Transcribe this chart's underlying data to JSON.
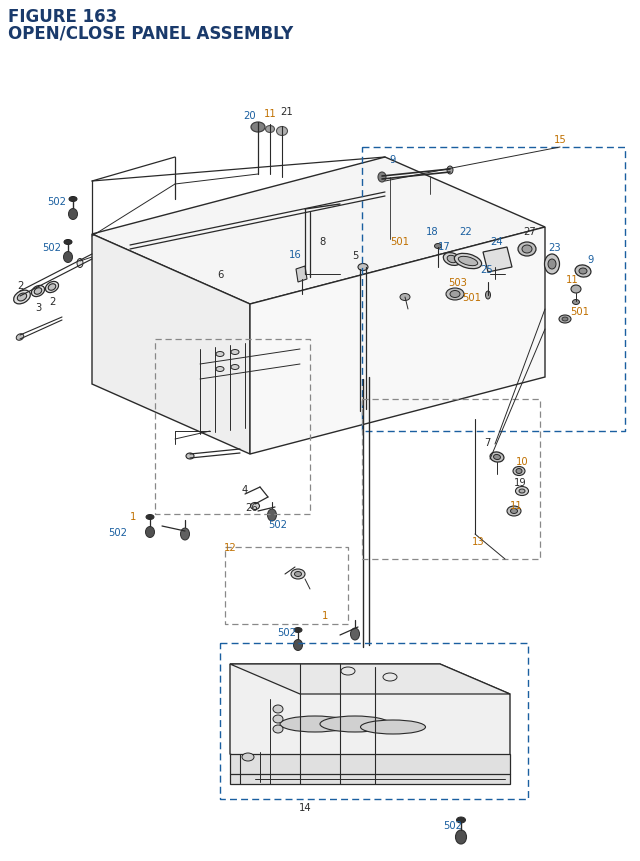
{
  "title_line1": "FIGURE 163",
  "title_line2": "OPEN/CLOSE PANEL ASSEMBLY",
  "title_color": "#1a3a6b",
  "bg_color": "#ffffff",
  "lc": "#2a2a2a",
  "blue": "#1a5fa0",
  "orange": "#c07000",
  "black": "#2a2a2a",
  "dash_c": "#1a5fa0",
  "figsize": [
    6.4,
    8.62
  ],
  "dpi": 100
}
